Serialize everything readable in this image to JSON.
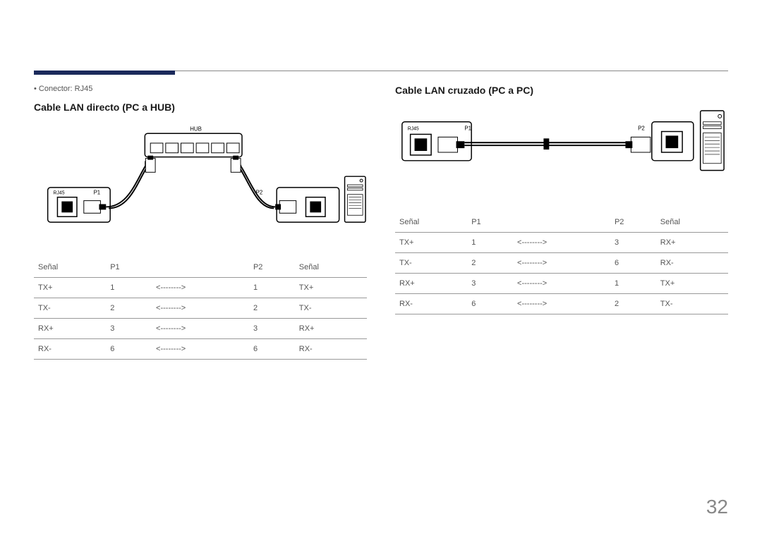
{
  "meta": {
    "page_number": "32",
    "accent_color": "#1b2a5b",
    "rule_color": "#888888",
    "text_color": "#555555",
    "bg_color": "#ffffff"
  },
  "left": {
    "bullet": "Conector: RJ45",
    "title": "Cable LAN directo (PC a HUB)",
    "diagram": {
      "hub_label": "HUB",
      "hub_p_left": "P2",
      "hub_p_right": "P1",
      "rj45_label": "RJ45",
      "p1_label": "P1",
      "p2_label": "P2"
    },
    "table": {
      "headers": [
        "Señal",
        "P1",
        "",
        "P2",
        "Señal"
      ],
      "rows": [
        [
          "TX+",
          "1",
          "<-------->",
          "1",
          "TX+"
        ],
        [
          "TX-",
          "2",
          "<-------->",
          "2",
          "TX-"
        ],
        [
          "RX+",
          "3",
          "<-------->",
          "3",
          "RX+"
        ],
        [
          "RX-",
          "6",
          "<-------->",
          "6",
          "RX-"
        ]
      ]
    }
  },
  "right": {
    "title": "Cable LAN cruzado (PC a PC)",
    "diagram": {
      "rj45_label": "RJ45",
      "p1_label": "P1",
      "p2_label": "P2"
    },
    "table": {
      "headers": [
        "Señal",
        "P1",
        "",
        "P2",
        "Señal"
      ],
      "rows": [
        [
          "TX+",
          "1",
          "<-------->",
          "3",
          "RX+"
        ],
        [
          "TX-",
          "2",
          "<-------->",
          "6",
          "RX-"
        ],
        [
          "RX+",
          "3",
          "<-------->",
          "1",
          "TX+"
        ],
        [
          "RX-",
          "6",
          "<-------->",
          "2",
          "TX-"
        ]
      ]
    }
  }
}
